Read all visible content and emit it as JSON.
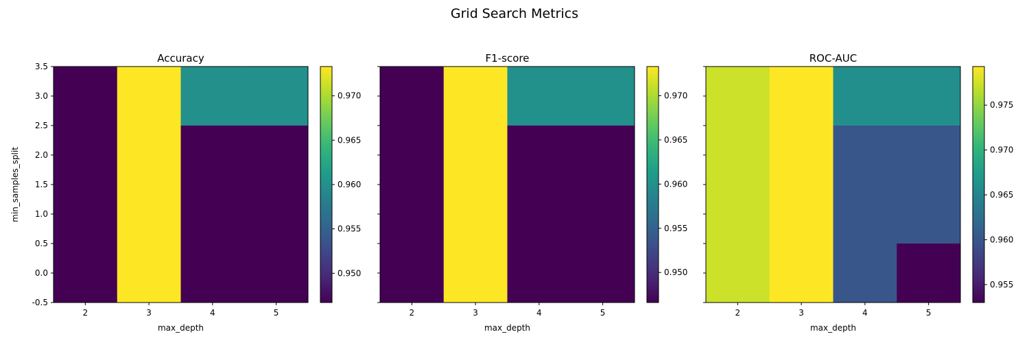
{
  "figure": {
    "title": "Grid Search Metrics"
  },
  "chart_data": [
    {
      "type": "heatmap",
      "title": "Accuracy",
      "xlabel": "max_depth",
      "ylabel": "min_samples_split",
      "x_ticks": [
        "2",
        "3",
        "4",
        "5"
      ],
      "y_ticks": [
        "3.5",
        "3.0",
        "2.5",
        "2.0",
        "1.5",
        "1.0",
        "0.5",
        "0.0",
        "-0.5"
      ],
      "ylim": [
        -0.5,
        3.5
      ],
      "colormap": "viridis",
      "rows": [
        {
          "y_from": 2.5,
          "y_to": 3.5,
          "values": [
            0.9467,
            0.9733,
            0.96,
            0.96
          ]
        },
        {
          "y_from": -0.5,
          "y_to": 2.5,
          "values": [
            0.9467,
            0.9733,
            0.9467,
            0.9467
          ]
        }
      ],
      "colorbar": {
        "min": 0.9467,
        "max": 0.9733,
        "ticks": [
          "0.950",
          "0.955",
          "0.960",
          "0.965",
          "0.970"
        ],
        "tick_values": [
          0.95,
          0.955,
          0.96,
          0.965,
          0.97
        ]
      }
    },
    {
      "type": "heatmap",
      "title": "F1-score",
      "xlabel": "max_depth",
      "ylabel": "",
      "x_ticks": [
        "2",
        "3",
        "4",
        "5"
      ],
      "y_ticks": [],
      "ylim": [
        -0.5,
        3.5
      ],
      "colormap": "viridis",
      "rows": [
        {
          "y_from": 2.5,
          "y_to": 3.5,
          "values": [
            0.9466,
            0.9733,
            0.96,
            0.96
          ]
        },
        {
          "y_from": -0.5,
          "y_to": 2.5,
          "values": [
            0.9466,
            0.9733,
            0.9466,
            0.9466
          ]
        }
      ],
      "colorbar": {
        "min": 0.9466,
        "max": 0.9733,
        "ticks": [
          "0.950",
          "0.955",
          "0.960",
          "0.965",
          "0.970"
        ],
        "tick_values": [
          0.95,
          0.955,
          0.96,
          0.965,
          0.97
        ]
      }
    },
    {
      "type": "heatmap",
      "title": "ROC-AUC",
      "xlabel": "max_depth",
      "ylabel": "",
      "x_ticks": [
        "2",
        "3",
        "4",
        "5"
      ],
      "y_ticks": [],
      "ylim": [
        -0.5,
        3.5
      ],
      "colormap": "viridis",
      "rows": [
        {
          "y_from": 2.5,
          "y_to": 3.5,
          "values": [
            0.9773,
            0.9793,
            0.966,
            0.966
          ]
        },
        {
          "y_from": 0.5,
          "y_to": 2.5,
          "values": [
            0.9773,
            0.9793,
            0.96,
            0.96
          ]
        },
        {
          "y_from": -0.5,
          "y_to": 0.5,
          "values": [
            0.9773,
            0.9793,
            0.96,
            0.953
          ]
        }
      ],
      "colorbar": {
        "min": 0.953,
        "max": 0.9793,
        "ticks": [
          "0.955",
          "0.960",
          "0.965",
          "0.970",
          "0.975"
        ],
        "tick_values": [
          0.955,
          0.96,
          0.965,
          0.97,
          0.975
        ]
      }
    }
  ]
}
